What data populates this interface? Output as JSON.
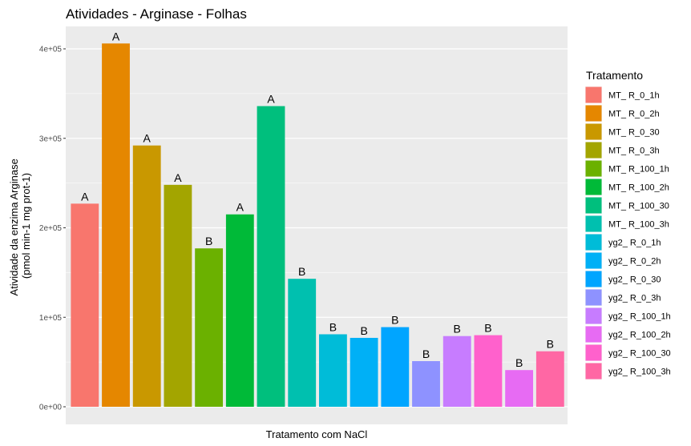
{
  "chart_data": {
    "type": "bar",
    "title": "Atividades - Arginase - Folhas",
    "xlabel": "Tratamento com NaCl",
    "ylabel_lines": [
      "Atividade da enzima Arginase",
      "(pmol min-1 mg prot-1)"
    ],
    "ylim": [
      0,
      420000
    ],
    "yticks": [
      0,
      100000,
      200000,
      300000,
      400000
    ],
    "ytick_labels": [
      "0e+00",
      "1e+05",
      "2e+05",
      "3e+05",
      "4e+05"
    ],
    "legend_title": "Tratamento",
    "legend_position": "right",
    "categories": [
      "MT_ R_0_1h",
      "MT_ R_0_2h",
      "MT_ R_0_30",
      "MT_ R_0_3h",
      "MT_ R_100_1h",
      "MT_ R_100_2h",
      "MT_ R_100_30",
      "MT_ R_100_3h",
      "yg2_ R_0_1h",
      "yg2_ R_0_2h",
      "yg2_ R_0_30",
      "yg2_ R_0_3h",
      "yg2_ R_100_1h",
      "yg2_ R_100_2h",
      "yg2_ R_100_30",
      "yg2_ R_100_3h"
    ],
    "values": [
      227000,
      406000,
      292000,
      248000,
      177000,
      215000,
      336000,
      143000,
      81000,
      77000,
      89000,
      51000,
      79000,
      41000,
      80000,
      62000
    ],
    "bar_order": [
      0,
      1,
      2,
      3,
      4,
      5,
      6,
      7,
      8,
      9,
      10,
      11,
      12,
      14,
      13,
      15
    ],
    "bar_labels": [
      "A",
      "A",
      "A",
      "A",
      "B",
      "A",
      "A",
      "B",
      "B",
      "B",
      "B",
      "B",
      "B",
      "B",
      "B",
      "B"
    ],
    "colors": [
      "#F8766D",
      "#E58700",
      "#C99800",
      "#A3A500",
      "#6BB100",
      "#00BA38",
      "#00BF7D",
      "#00C0AF",
      "#00BCD8",
      "#00B0F6",
      "#00A5FF",
      "#8E92FF",
      "#C77CFF",
      "#E76BF3",
      "#FF61CC",
      "#FF67A4"
    ]
  }
}
